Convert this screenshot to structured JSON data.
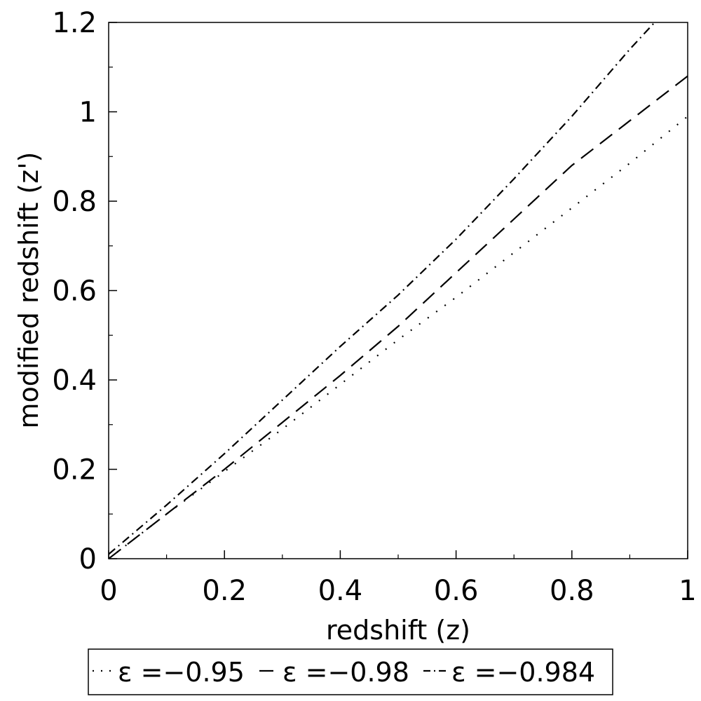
{
  "chart_data": {
    "type": "line",
    "title": "",
    "xlabel": "redshift (z)",
    "ylabel": "modified redshift (z')",
    "xlim": [
      0,
      1
    ],
    "ylim": [
      0,
      1.2
    ],
    "x_ticks": [
      {
        "value": 0,
        "label": "0"
      },
      {
        "value": 0.2,
        "label": "0.2"
      },
      {
        "value": 0.4,
        "label": "0.4"
      },
      {
        "value": 0.6,
        "label": "0.6"
      },
      {
        "value": 0.8,
        "label": "0.8"
      },
      {
        "value": 1,
        "label": "1"
      }
    ],
    "y_ticks": [
      {
        "value": 0,
        "label": "0"
      },
      {
        "value": 0.2,
        "label": "0.2"
      },
      {
        "value": 0.4,
        "label": "0.4"
      },
      {
        "value": 0.6,
        "label": "0.6"
      },
      {
        "value": 0.8,
        "label": "0.8"
      },
      {
        "value": 1,
        "label": "1"
      },
      {
        "value": 1.2,
        "label": "1.2"
      }
    ],
    "grid": false,
    "legend_position": "bottom",
    "series": [
      {
        "name": "ε =−0.95",
        "style": "dotted",
        "color": "#000000",
        "points": [
          [
            0,
            0
          ],
          [
            0.1,
            0.1
          ],
          [
            0.2,
            0.195
          ],
          [
            0.3,
            0.29
          ],
          [
            0.4,
            0.39
          ],
          [
            0.5,
            0.49
          ],
          [
            0.6,
            0.585
          ],
          [
            0.7,
            0.685
          ],
          [
            0.8,
            0.785
          ],
          [
            0.9,
            0.885
          ],
          [
            1.0,
            0.99
          ]
        ]
      },
      {
        "name": "ε =−0.98",
        "style": "dashed",
        "color": "#000000",
        "points": [
          [
            0,
            0
          ],
          [
            0.1,
            0.1
          ],
          [
            0.2,
            0.2
          ],
          [
            0.3,
            0.305
          ],
          [
            0.4,
            0.41
          ],
          [
            0.5,
            0.52
          ],
          [
            0.6,
            0.64
          ],
          [
            0.7,
            0.76
          ],
          [
            0.8,
            0.88
          ],
          [
            0.9,
            0.98
          ],
          [
            1.0,
            1.08
          ]
        ]
      },
      {
        "name": "ε =−0.984",
        "style": "dash-dot",
        "color": "#000000",
        "points": [
          [
            0,
            0.01
          ],
          [
            0.1,
            0.12
          ],
          [
            0.2,
            0.235
          ],
          [
            0.3,
            0.355
          ],
          [
            0.4,
            0.475
          ],
          [
            0.5,
            0.59
          ],
          [
            0.6,
            0.715
          ],
          [
            0.7,
            0.85
          ],
          [
            0.8,
            0.99
          ],
          [
            0.9,
            1.14
          ],
          [
            0.95,
            1.21
          ]
        ]
      }
    ]
  }
}
